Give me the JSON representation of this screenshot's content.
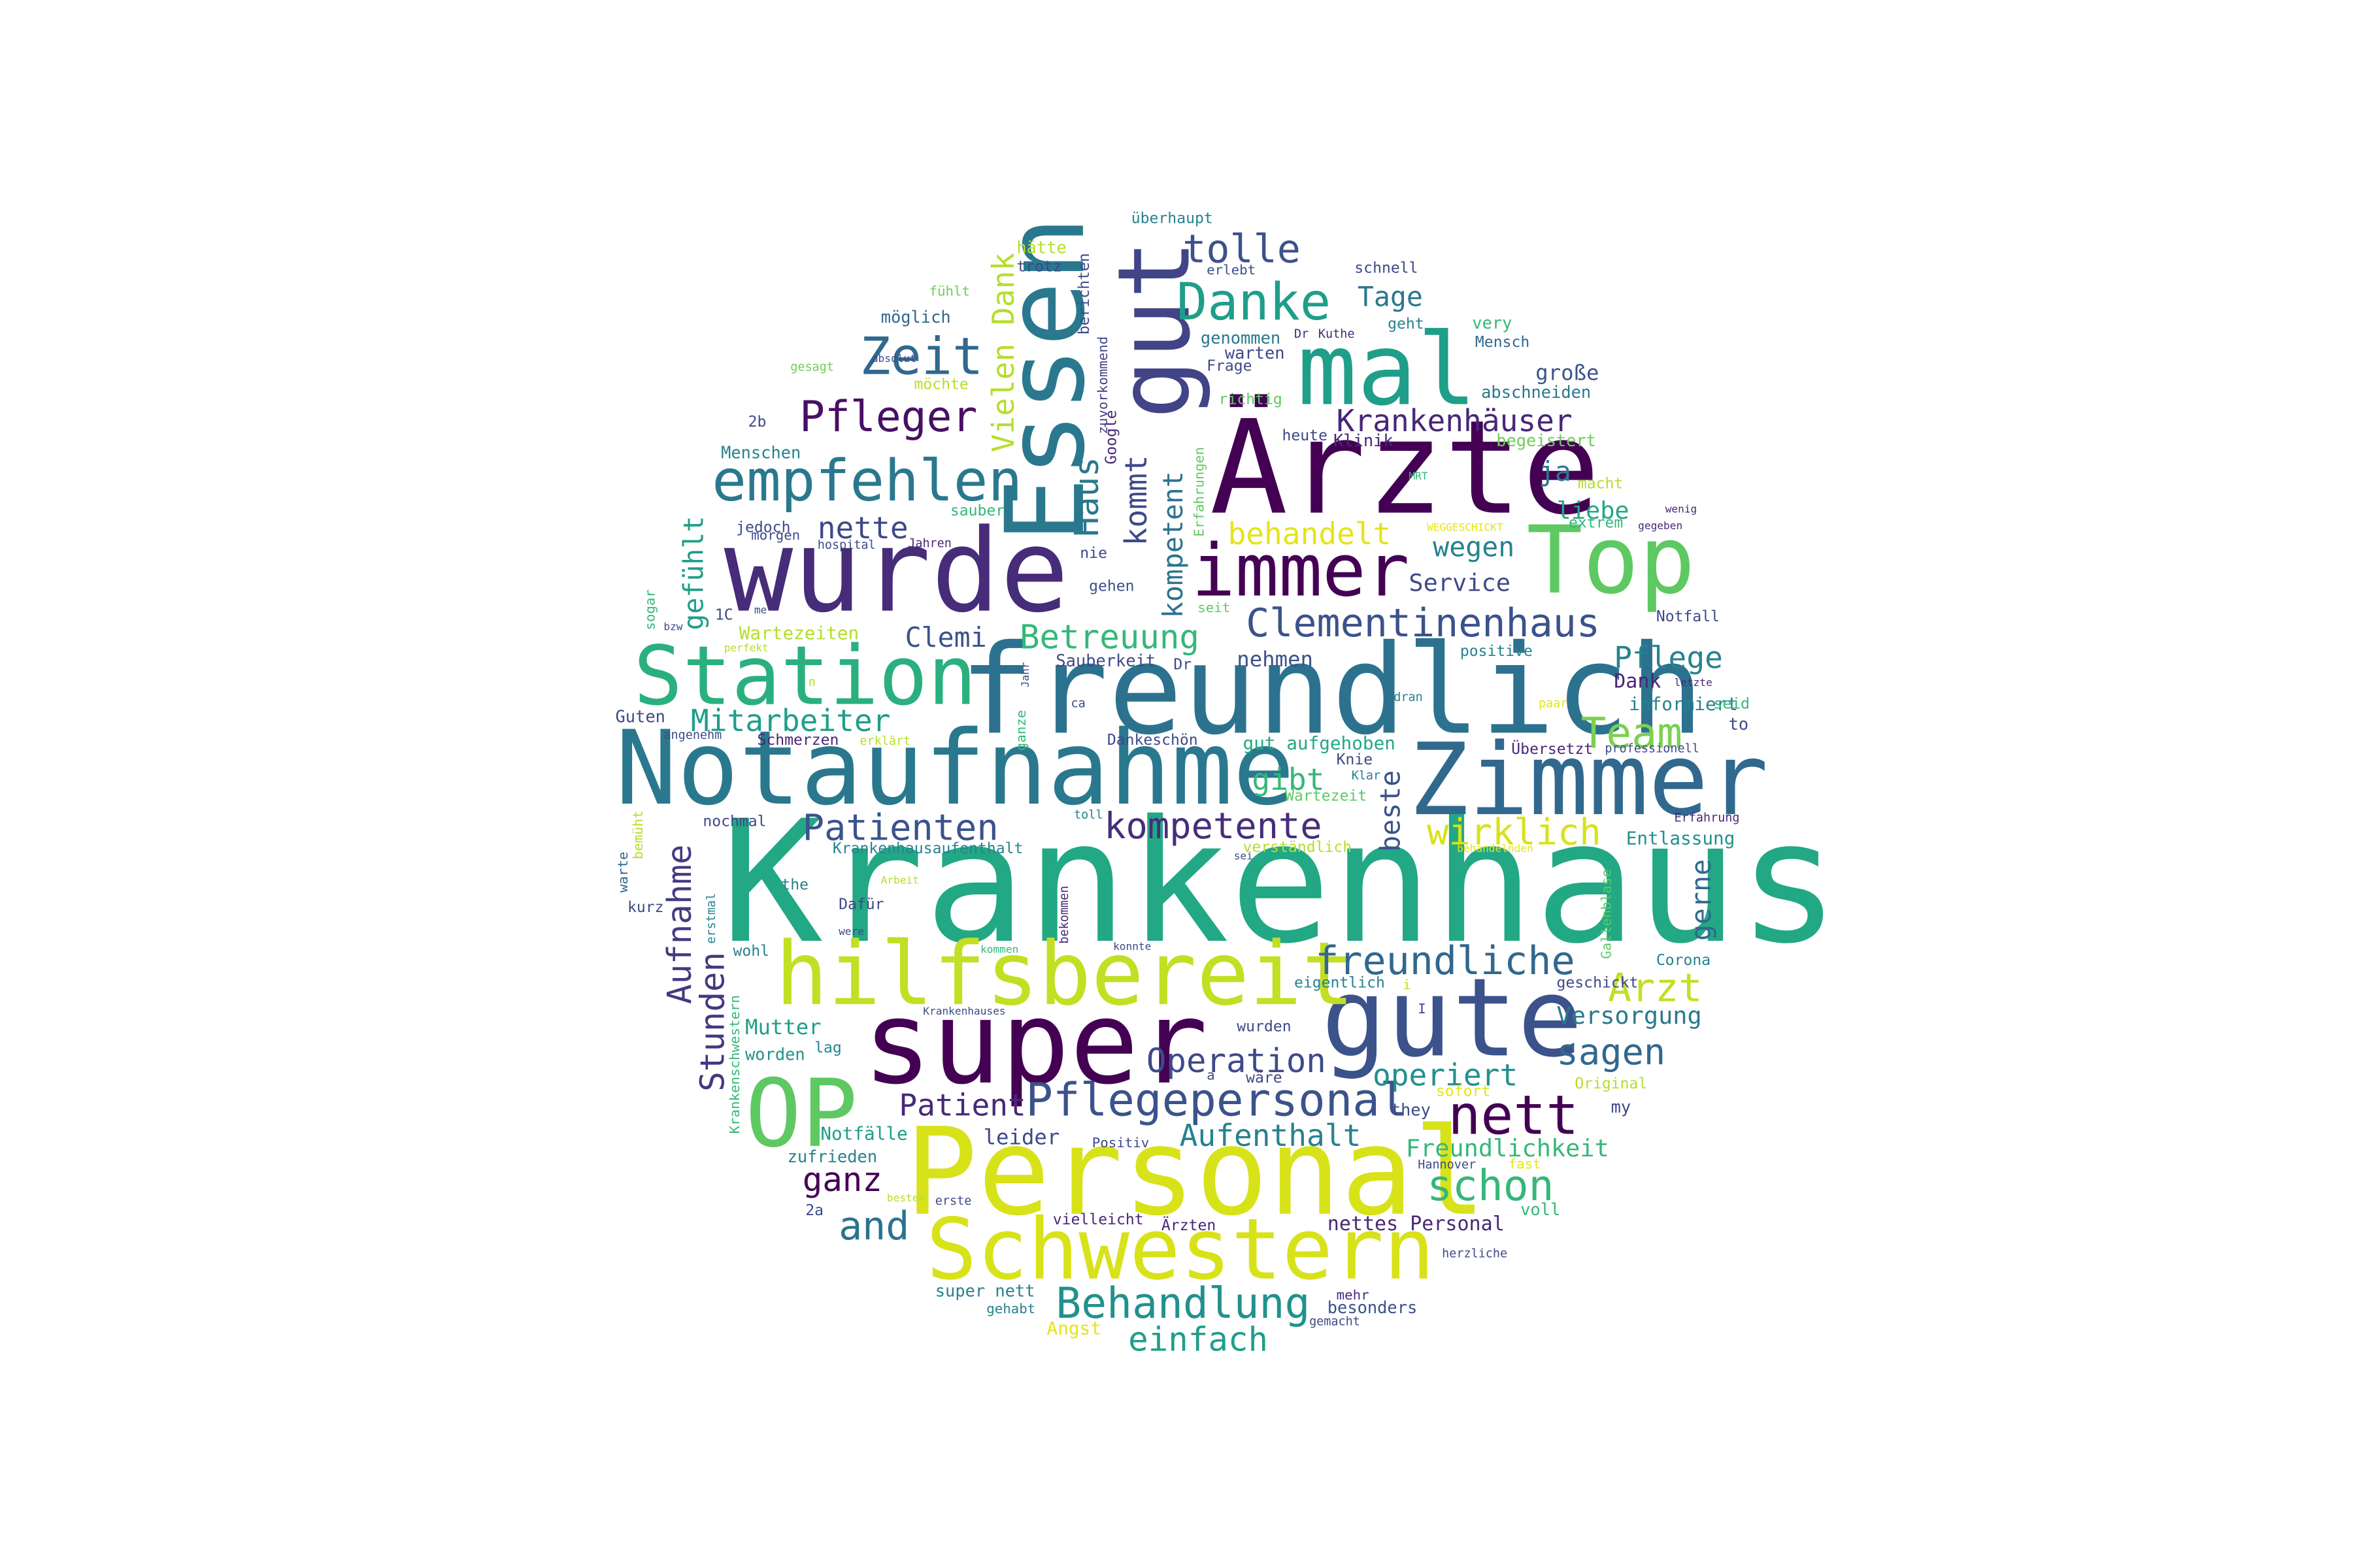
{
  "wordcloud": {
    "palette": [
      "#440154",
      "#482878",
      "#3e4989",
      "#31688e",
      "#26828e",
      "#1f9e89",
      "#35b779",
      "#6ece58",
      "#b5de2b",
      "#fde725"
    ],
    "words": [
      {
        "text": "Krankenhaus",
        "color": "#22a884"
      },
      {
        "text": "freundlich",
        "color": "#2c728e"
      },
      {
        "text": "Notaufnahme",
        "color": "#2a788e"
      },
      {
        "text": "Personal",
        "color": "#d8e219"
      },
      {
        "text": "wurde",
        "color": "#472c7a"
      },
      {
        "text": "super",
        "color": "#440154"
      },
      {
        "text": "Zimmer",
        "color": "#31688e"
      },
      {
        "text": "gute",
        "color": "#3b528b"
      },
      {
        "text": "Ärzte",
        "color": "#440154"
      },
      {
        "text": "hilfsbereit",
        "color": "#c2df23"
      },
      {
        "text": "Schwestern",
        "color": "#d8e219"
      },
      {
        "text": "Essen",
        "color": "#2a788e"
      },
      {
        "text": "Station",
        "color": "#2ab07f"
      },
      {
        "text": "Top",
        "color": "#5ec962"
      },
      {
        "text": "mal",
        "color": "#1f9e89"
      },
      {
        "text": "gut",
        "color": "#414487"
      },
      {
        "text": "OP",
        "color": "#5ec962"
      },
      {
        "text": "immer",
        "color": "#440154"
      },
      {
        "text": "empfehlen",
        "color": "#2a788e"
      },
      {
        "text": "Zeit",
        "color": "#31688e"
      },
      {
        "text": "Danke",
        "color": "#1f9e89"
      },
      {
        "text": "Pfleger",
        "color": "#471063"
      },
      {
        "text": "nett",
        "color": "#440154"
      },
      {
        "text": "Clementinenhaus",
        "color": "#3b528b"
      },
      {
        "text": "Pflegepersonal",
        "color": "#3b528b"
      },
      {
        "text": "Patienten",
        "color": "#3b528b"
      },
      {
        "text": "freundliche",
        "color": "#31688e"
      },
      {
        "text": "kompetente",
        "color": "#472d7b"
      },
      {
        "text": "Behandlung",
        "color": "#21918c"
      },
      {
        "text": "schon",
        "color": "#35b779"
      },
      {
        "text": "Team",
        "color": "#7ad151"
      },
      {
        "text": "Arzt",
        "color": "#c2df23"
      },
      {
        "text": "tolle",
        "color": "#3b528b"
      },
      {
        "text": "Betreuung",
        "color": "#35b779"
      },
      {
        "text": "wirklich",
        "color": "#d8e219"
      },
      {
        "text": "Krankenhäuser",
        "color": "#482677"
      },
      {
        "text": "Mitarbeiter",
        "color": "#1f9e89"
      },
      {
        "text": "Aufnahme",
        "color": "#443983"
      },
      {
        "text": "Stunden",
        "color": "#453781"
      },
      {
        "text": "Operation",
        "color": "#3e4a89"
      },
      {
        "text": "Aufenthalt",
        "color": "#26828e"
      },
      {
        "text": "sagen",
        "color": "#31688e"
      },
      {
        "text": "and",
        "color": "#2c728e"
      },
      {
        "text": "einfach",
        "color": "#1f9e89"
      },
      {
        "text": "operiert",
        "color": "#21918c"
      },
      {
        "text": "Patient",
        "color": "#482878"
      },
      {
        "text": "ganz",
        "color": "#440154"
      },
      {
        "text": "Vielen Dank",
        "color": "#b5de2b"
      },
      {
        "text": "kommt",
        "color": "#3e4989"
      },
      {
        "text": "Haus",
        "color": "#2a788e"
      },
      {
        "text": "kompetent",
        "color": "#2c728e"
      },
      {
        "text": "behandelt",
        "color": "#e5e419"
      },
      {
        "text": "Pflege",
        "color": "#26828e"
      },
      {
        "text": "Tage",
        "color": "#2a788e"
      },
      {
        "text": "gibt",
        "color": "#35b779"
      },
      {
        "text": "beste",
        "color": "#3b528b"
      },
      {
        "text": "gerne",
        "color": "#31688e"
      },
      {
        "text": "Clemi",
        "color": "#3b528b"
      },
      {
        "text": "nette",
        "color": "#3e4989"
      },
      {
        "text": "ja",
        "color": "#2a788e"
      },
      {
        "text": "wegen",
        "color": "#26828e"
      },
      {
        "text": "Service",
        "color": "#3e4989"
      },
      {
        "text": "liebe",
        "color": "#22a884"
      },
      {
        "text": "gefühlt",
        "color": "#1f9e89"
      },
      {
        "text": "Versorgung",
        "color": "#2a788e"
      },
      {
        "text": "Freundlichkeit",
        "color": "#35b779"
      },
      {
        "text": "Mutter",
        "color": "#1f9e89"
      },
      {
        "text": "nehmen",
        "color": "#3b528b"
      },
      {
        "text": "leider",
        "color": "#3e4989"
      },
      {
        "text": "nettes Personal",
        "color": "#482878"
      },
      {
        "text": "gut aufgehoben",
        "color": "#22a884"
      },
      {
        "text": "Wartezeiten",
        "color": "#b5de2b"
      },
      {
        "text": "Dank",
        "color": "#482878"
      },
      {
        "text": "informiert",
        "color": "#26828e"
      },
      {
        "text": "Entlassung",
        "color": "#21918c"
      },
      {
        "text": "große",
        "color": "#3b528b"
      },
      {
        "text": "Sauberkeit",
        "color": "#3e4989"
      },
      {
        "text": "Notfälle",
        "color": "#1f9e89"
      },
      {
        "text": "Angst",
        "color": "#e5e419"
      },
      {
        "text": "besonders",
        "color": "#3b528b"
      },
      {
        "text": "super nett",
        "color": "#26828e"
      },
      {
        "text": "berichten",
        "color": "#3e4989"
      },
      {
        "text": "Google",
        "color": "#482878"
      },
      {
        "text": "Erfahrungen",
        "color": "#5ec962"
      },
      {
        "text": "zuvorkommend",
        "color": "#414487"
      },
      {
        "text": "möglich",
        "color": "#31688e"
      },
      {
        "text": "hätte",
        "color": "#b5de2b"
      },
      {
        "text": "trotz",
        "color": "#3e4989"
      },
      {
        "text": "erlebt",
        "color": "#3b528b"
      },
      {
        "text": "überhaupt",
        "color": "#26828e"
      },
      {
        "text": "schnell",
        "color": "#3e4989"
      },
      {
        "text": "very",
        "color": "#35b779"
      },
      {
        "text": "Mensch",
        "color": "#31688e"
      },
      {
        "text": "genommen",
        "color": "#2a788e"
      },
      {
        "text": "warten",
        "color": "#3e4989"
      },
      {
        "text": "Frage",
        "color": "#3e4989"
      },
      {
        "text": "richtig",
        "color": "#5ec962"
      },
      {
        "text": "heute",
        "color": "#3e4989"
      },
      {
        "text": "Klinik",
        "color": "#482878"
      },
      {
        "text": "begeistert",
        "color": "#6ece58"
      },
      {
        "text": "abschneiden",
        "color": "#2a788e"
      },
      {
        "text": "macht",
        "color": "#b5de2b"
      },
      {
        "text": "Menschen",
        "color": "#26828e"
      },
      {
        "text": "jedoch",
        "color": "#3e4989"
      },
      {
        "text": "morgen",
        "color": "#3e4989"
      },
      {
        "text": "sauber",
        "color": "#35b779"
      },
      {
        "text": "nie",
        "color": "#3e4989"
      },
      {
        "text": "gehen",
        "color": "#3b528b"
      },
      {
        "text": "seit",
        "color": "#5ec962"
      },
      {
        "text": "Dr",
        "color": "#3e4989"
      },
      {
        "text": "positive",
        "color": "#26828e"
      },
      {
        "text": "Notfall",
        "color": "#3e4989"
      },
      {
        "text": "extrem",
        "color": "#35b779"
      },
      {
        "text": "Guten",
        "color": "#3e4989"
      },
      {
        "text": "Schmerzen",
        "color": "#482878"
      },
      {
        "text": "Dankeschön",
        "color": "#3e4989"
      },
      {
        "text": "Wartezeit",
        "color": "#5ec962"
      },
      {
        "text": "Übersetzt",
        "color": "#482878"
      },
      {
        "text": "Knie",
        "color": "#3e4989"
      },
      {
        "text": "nochmal",
        "color": "#3e4989"
      },
      {
        "text": "Krankenhausaufenthalt",
        "color": "#26828e"
      },
      {
        "text": "verständlich",
        "color": "#b5de2b"
      },
      {
        "text": "the",
        "color": "#26828e"
      },
      {
        "text": "Dafür",
        "color": "#3e4989"
      },
      {
        "text": "wohl",
        "color": "#26828e"
      },
      {
        "text": "worden",
        "color": "#21918c"
      },
      {
        "text": "wurden",
        "color": "#3e4989"
      },
      {
        "text": "Corona",
        "color": "#26828e"
      },
      {
        "text": "geschickt",
        "color": "#3e4989"
      },
      {
        "text": "eigentlich",
        "color": "#26828e"
      },
      {
        "text": "bekommen",
        "color": "#482878"
      },
      {
        "text": "Gallenblase",
        "color": "#5ec962"
      },
      {
        "text": "zufrieden",
        "color": "#26828e"
      },
      {
        "text": "Positiv",
        "color": "#3e4989"
      },
      {
        "text": "vielleicht",
        "color": "#482878"
      },
      {
        "text": "Ärzten",
        "color": "#482878"
      },
      {
        "text": "voll",
        "color": "#35b779"
      },
      {
        "text": "mehr",
        "color": "#482878"
      },
      {
        "text": "gehabt",
        "color": "#26828e"
      },
      {
        "text": "gemacht",
        "color": "#3e4989"
      },
      {
        "text": "they",
        "color": "#3e4989"
      },
      {
        "text": "my",
        "color": "#3e4989"
      },
      {
        "text": "sofort",
        "color": "#e5e419"
      },
      {
        "text": "fast",
        "color": "#e5e419"
      },
      {
        "text": "Original",
        "color": "#b5de2b"
      },
      {
        "text": "Hannover",
        "color": "#3e4989"
      },
      {
        "text": "herzliche",
        "color": "#3e4989"
      },
      {
        "text": "erste",
        "color": "#3e4989"
      },
      {
        "text": "2a",
        "color": "#3e4989"
      },
      {
        "text": "2b",
        "color": "#3e4989"
      },
      {
        "text": "1C",
        "color": "#3e4989"
      },
      {
        "text": "warte",
        "color": "#31688e"
      },
      {
        "text": "bemüht",
        "color": "#b5de2b"
      },
      {
        "text": "kurz",
        "color": "#3e4989"
      },
      {
        "text": "sogar",
        "color": "#35b779"
      },
      {
        "text": "toll",
        "color": "#26828e"
      },
      {
        "text": "fühlt",
        "color": "#6ece58"
      },
      {
        "text": "gesagt",
        "color": "#6ece58"
      },
      {
        "text": "absolut",
        "color": "#3e4989"
      },
      {
        "text": "Krankenschwestern",
        "color": "#35b779"
      },
      {
        "text": "Krankenhauses",
        "color": "#3e4989"
      },
      {
        "text": "Arbeit",
        "color": "#b5de2b"
      },
      {
        "text": "lag",
        "color": "#26828e"
      },
      {
        "text": "a",
        "color": "#3e4989"
      },
      {
        "text": "wäre",
        "color": "#3e4989"
      },
      {
        "text": "möchte",
        "color": "#b5de2b"
      },
      {
        "text": "hospital",
        "color": "#3e4989"
      },
      {
        "text": "Jahren",
        "color": "#482878"
      },
      {
        "text": "ca",
        "color": "#3e4989"
      },
      {
        "text": "dran",
        "color": "#26828e"
      },
      {
        "text": "paar",
        "color": "#e5e419"
      },
      {
        "text": "professionell",
        "color": "#3e4989"
      },
      {
        "text": "seid",
        "color": "#35b779"
      },
      {
        "text": "to",
        "color": "#3e4989"
      },
      {
        "text": "letzte",
        "color": "#482878"
      },
      {
        "text": "wenig",
        "color": "#482878"
      },
      {
        "text": "gegeben",
        "color": "#482878"
      },
      {
        "text": "MRT",
        "color": "#35b779"
      },
      {
        "text": "geht",
        "color": "#26828e"
      },
      {
        "text": "Kuthe",
        "color": "#482878"
      },
      {
        "text": "Dr",
        "color": "#482878"
      },
      {
        "text": "Erfahrung",
        "color": "#482878"
      },
      {
        "text": "behandelnden",
        "color": "#e5e419"
      },
      {
        "text": "sei",
        "color": "#3e4989"
      },
      {
        "text": "konnte",
        "color": "#3e4989"
      },
      {
        "text": "kommen",
        "color": "#35b779"
      },
      {
        "text": "erklärt",
        "color": "#b5de2b"
      },
      {
        "text": "angenehm",
        "color": "#3e4989"
      },
      {
        "text": "perfekt",
        "color": "#b5de2b"
      },
      {
        "text": "bzw",
        "color": "#3e4989"
      },
      {
        "text": "me",
        "color": "#3e4989"
      },
      {
        "text": "were",
        "color": "#3e4989"
      },
      {
        "text": "erstmal",
        "color": "#26828e"
      },
      {
        "text": "ganze",
        "color": "#35b779"
      },
      {
        "text": "Jahr",
        "color": "#3e4989"
      },
      {
        "text": "Klar",
        "color": "#26828e"
      },
      {
        "text": "besten",
        "color": "#b5de2b"
      },
      {
        "text": "WEGGESCHICKT",
        "color": "#e5e419"
      },
      {
        "text": "n",
        "color": "#b5de2b"
      },
      {
        "text": "i",
        "color": "#b5de2b"
      },
      {
        "text": "I",
        "color": "#3e4989"
      }
    ]
  }
}
